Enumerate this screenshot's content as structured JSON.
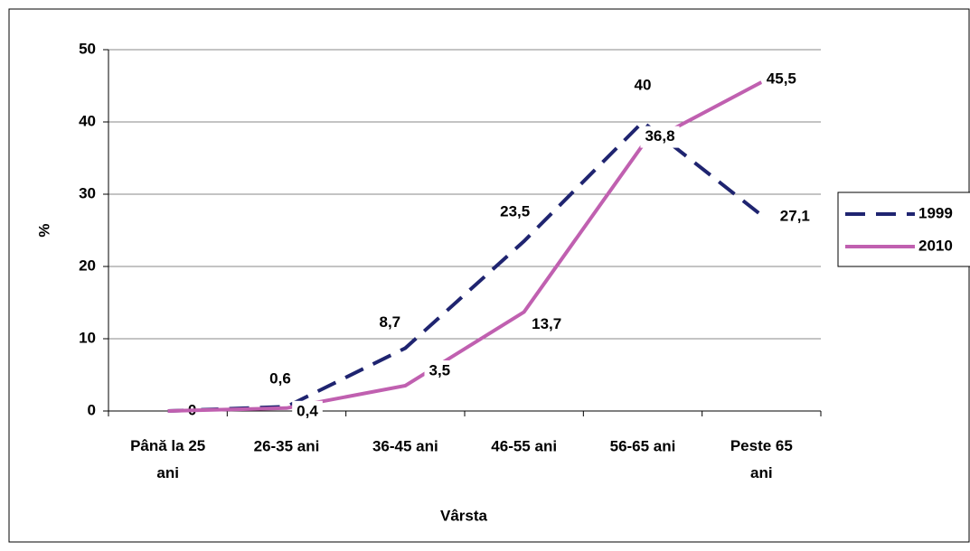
{
  "chart_data": {
    "type": "line",
    "categories": [
      "Până la 25 ani",
      "26-35 ani",
      "36-45 ani",
      "46-55 ani",
      "56-65 ani",
      "Peste 65 ani"
    ],
    "series": [
      {
        "name": "1999",
        "color": "#1f2470",
        "dash": true,
        "values": [
          0,
          0.6,
          8.7,
          23.5,
          40,
          27.1
        ],
        "value_labels": [
          "0",
          "0,6",
          "8,7",
          "23,5",
          "40",
          "27,1"
        ]
      },
      {
        "name": "2010",
        "color": "#c060b0",
        "dash": false,
        "values": [
          0,
          0.4,
          3.5,
          13.7,
          36.8,
          45.5
        ],
        "value_labels": [
          null,
          "0,4",
          "3,5",
          "13,7",
          "36,8",
          "45,5"
        ]
      }
    ],
    "ylabel": "%",
    "xlabel": "Vârsta",
    "ylim": [
      0,
      50
    ],
    "yticks": [
      0,
      10,
      20,
      30,
      40,
      50
    ],
    "grid": true,
    "legend": "right"
  }
}
